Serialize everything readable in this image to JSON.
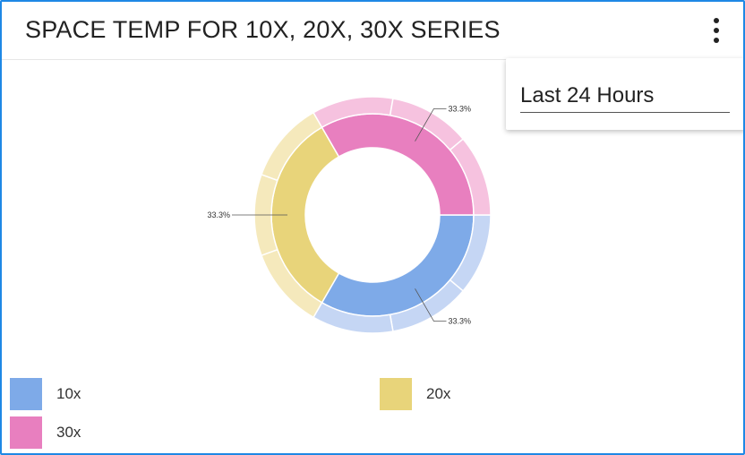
{
  "header": {
    "title": "SPACE TEMP FOR 10X, 20X, 30X SERIES",
    "menu_icon": "vertical-dots-icon"
  },
  "range_selector": {
    "value": "Last 24 Hours"
  },
  "chart_data": {
    "type": "pie",
    "style": "double-donut",
    "series": [
      {
        "name": "10x",
        "value": 33.3,
        "label": "33.3%",
        "color": "#7eaae8",
        "outer_color": "#c5d6f4",
        "outer_segments": [
          33.3,
          33.3,
          33.3
        ]
      },
      {
        "name": "20x",
        "value": 33.3,
        "label": "33.3%",
        "color": "#e8d47a",
        "outer_color": "#f5e9bc",
        "outer_segments": [
          33.3,
          33.3,
          33.3
        ]
      },
      {
        "name": "30x",
        "value": 33.3,
        "label": "33.3%",
        "color": "#e87fbf",
        "outer_color": "#f6c2df",
        "outer_segments": [
          33.3,
          33.3,
          33.3
        ]
      }
    ],
    "legend": "bottom"
  },
  "legend": {
    "items": [
      {
        "label": "10x",
        "color": "#7eaae8"
      },
      {
        "label": "20x",
        "color": "#e8d47a"
      },
      {
        "label": "30x",
        "color": "#e87fbf"
      }
    ]
  }
}
